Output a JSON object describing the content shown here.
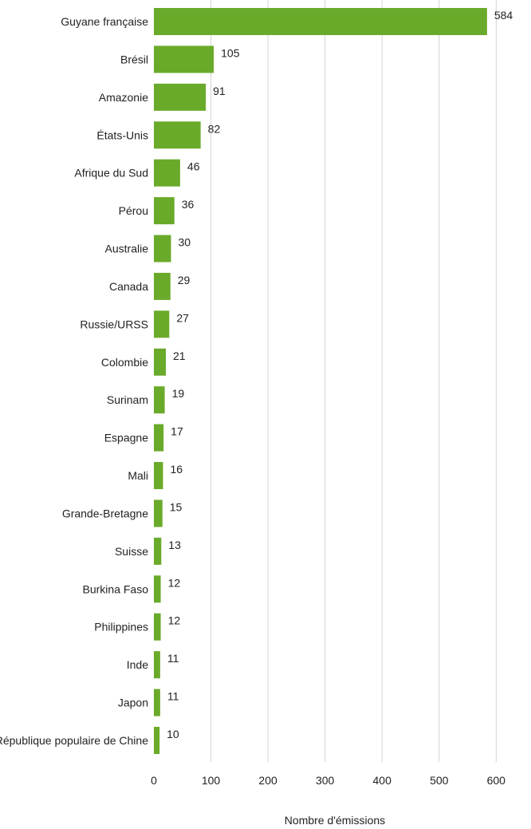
{
  "chart_data": {
    "type": "bar",
    "orientation": "horizontal",
    "categories": [
      "Guyane française",
      "Brésil",
      "Amazonie",
      "États-Unis",
      "Afrique du Sud",
      "Pérou",
      "Australie",
      "Canada",
      "Russie/URSS",
      "Colombie",
      "Surinam",
      "Espagne",
      "Mali",
      "Grande-Bretagne",
      "Suisse",
      "Burkina Faso",
      "Philippines",
      "Inde",
      "Japon",
      "République populaire de Chine"
    ],
    "values": [
      584,
      105,
      91,
      82,
      46,
      36,
      30,
      29,
      27,
      21,
      19,
      17,
      16,
      15,
      13,
      12,
      12,
      11,
      11,
      10
    ],
    "xticks": [
      0,
      100,
      200,
      300,
      400,
      500,
      600
    ],
    "xlim": [
      0,
      650
    ],
    "xlabel": "Nombre d'émissions",
    "ylabel": "",
    "title": "",
    "grid": true,
    "bar_color": "#6aaa2a",
    "grid_color": "#d4d4d4"
  }
}
